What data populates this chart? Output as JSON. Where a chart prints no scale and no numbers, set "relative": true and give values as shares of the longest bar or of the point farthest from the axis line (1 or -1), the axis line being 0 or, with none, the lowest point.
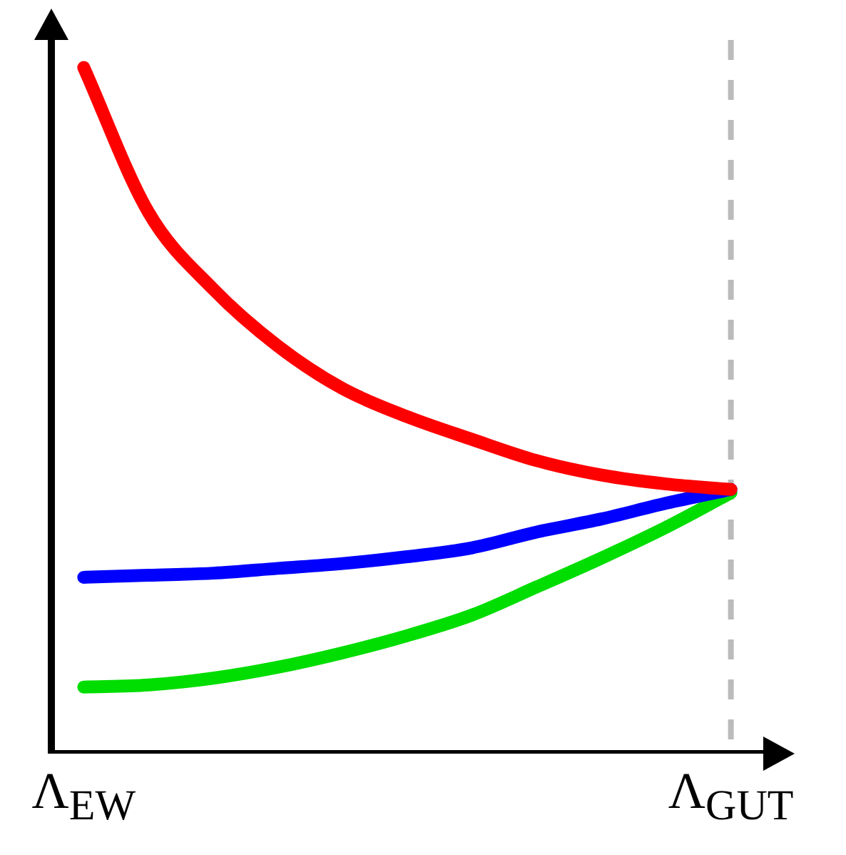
{
  "chart_data": {
    "type": "line",
    "relative": true,
    "tick_labels": "x",
    "grid": false,
    "legend": false,
    "marker": "none",
    "line_style": "solid",
    "categories": [
      "Λ$_{EW}$",
      null,
      null,
      null,
      null,
      null,
      null,
      null,
      null,
      null,
      "Λ$_{GUT}$"
    ],
    "ref_lines": [
      {
        "axis": "x",
        "value": "Λ$_{GUT}$",
        "color": "#bbbbbb",
        "line_style": "dashed"
      }
    ],
    "series": [
      {
        "color": "#ff0000",
        "values": [
          1.0,
          0.789,
          0.677,
          0.594,
          0.532,
          0.491,
          0.458,
          0.427,
          0.406,
          0.393,
          0.385
        ]
      },
      {
        "color": "#0000ff",
        "values": [
          0.257,
          0.26,
          0.263,
          0.27,
          0.277,
          0.287,
          0.3,
          0.323,
          0.342,
          0.365,
          0.385
        ]
      },
      {
        "color": "#00dd00",
        "values": [
          0.097,
          0.1,
          0.11,
          0.126,
          0.147,
          0.172,
          0.202,
          0.243,
          0.285,
          0.33,
          0.38
        ]
      }
    ]
  }
}
